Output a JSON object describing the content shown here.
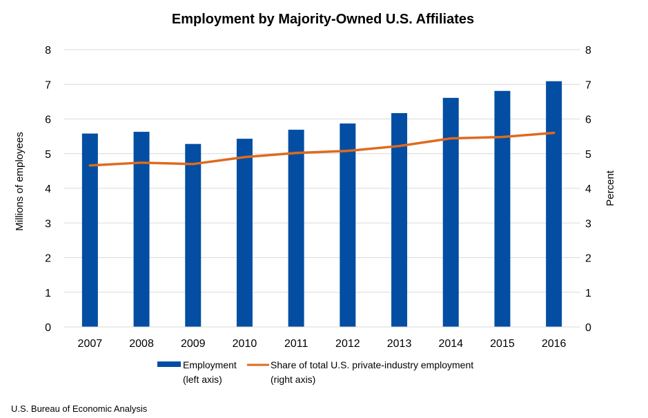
{
  "chart_data": {
    "type": "bar",
    "title": "Employment by Majority-Owned U.S. Affiliates",
    "categories": [
      "2007",
      "2008",
      "2009",
      "2010",
      "2011",
      "2012",
      "2013",
      "2014",
      "2015",
      "2016"
    ],
    "series": [
      {
        "name": "Employment",
        "name_line2": "(left axis)",
        "type": "bar",
        "axis": "left",
        "color": "#034EA2",
        "values": [
          5.58,
          5.63,
          5.28,
          5.43,
          5.69,
          5.87,
          6.17,
          6.61,
          6.81,
          7.09
        ]
      },
      {
        "name": "Share of total U.S. private-industry employment",
        "name_line2": "(right axis)",
        "type": "line",
        "axis": "right",
        "color": "#DE6A1F",
        "values": [
          4.66,
          4.74,
          4.7,
          4.9,
          5.02,
          5.08,
          5.22,
          5.44,
          5.48,
          5.6
        ]
      }
    ],
    "ylabel": "Millions of employees",
    "y2label": "Percent",
    "ylim": [
      0,
      8
    ],
    "y2lim": [
      0,
      8
    ],
    "yticks": [
      "0",
      "1",
      "2",
      "3",
      "4",
      "5",
      "6",
      "7",
      "8"
    ],
    "y2ticks": [
      "0",
      "1",
      "2",
      "3",
      "4",
      "5",
      "6",
      "7",
      "8"
    ],
    "grid": true,
    "legend_position": "bottom"
  },
  "source": "U.S. Bureau of Economic Analysis"
}
